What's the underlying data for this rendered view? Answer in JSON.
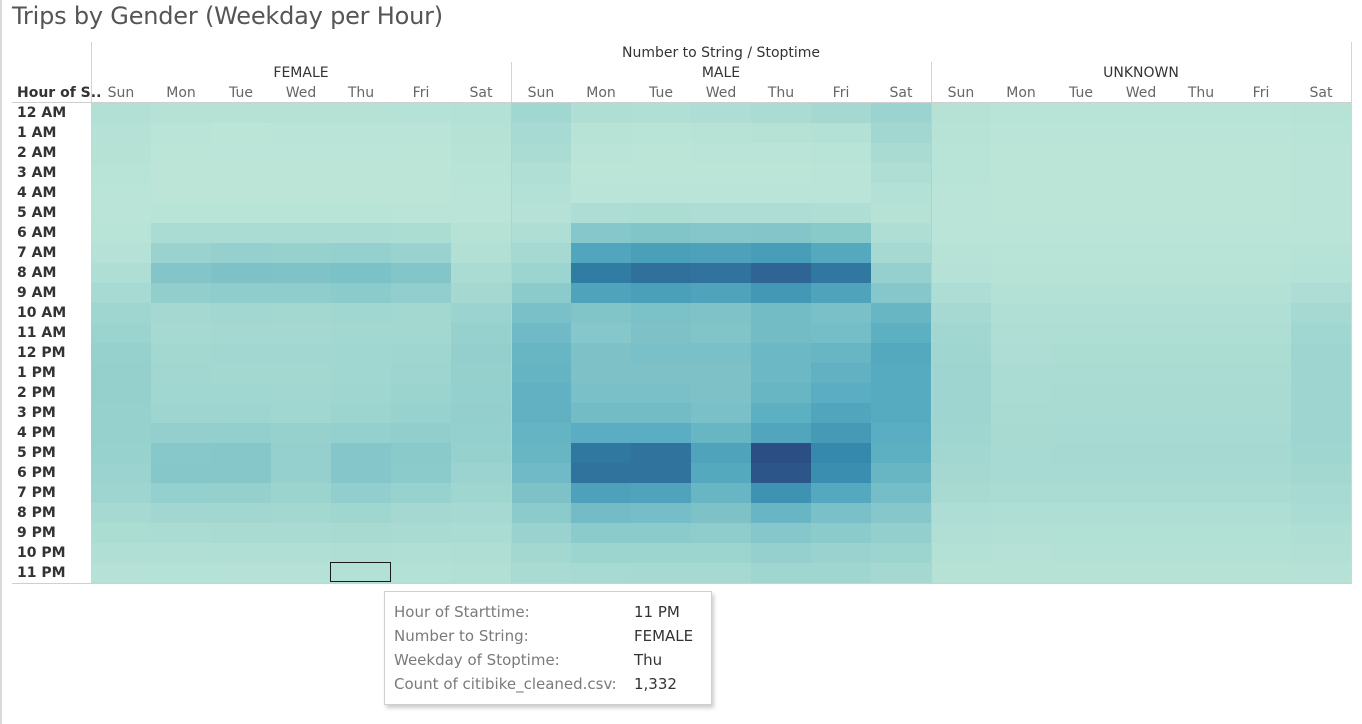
{
  "title": "Trips by Gender (Weekday per Hour)",
  "super_header": "Number to String / Stoptime",
  "row_field_label": "Hour of S..",
  "colors": {
    "low": "#bde6d8",
    "high": "#2b4f85",
    "highlight_border": "#1a1a1a"
  },
  "tooltip": {
    "rows": [
      {
        "key": "Hour of Starttime:",
        "value": "11 PM"
      },
      {
        "key": "Number to String:",
        "value": "FEMALE"
      },
      {
        "key": "Weekday of Stoptime:",
        "value": "Thu"
      },
      {
        "key": "Count of citibike_cleaned.csv:",
        "value": "1,332"
      }
    ]
  },
  "chart_data": {
    "type": "heatmap",
    "title": "Trips by Gender (Weekday per Hour)",
    "column_group_field": "Number to String / Stoptime",
    "row_field": "Hour of S..",
    "groups": [
      "FEMALE",
      "MALE",
      "UNKNOWN"
    ],
    "days": [
      "Sun",
      "Mon",
      "Tue",
      "Wed",
      "Thu",
      "Fri",
      "Sat"
    ],
    "hours": [
      "12 AM",
      "1 AM",
      "2 AM",
      "3 AM",
      "4 AM",
      "5 AM",
      "6 AM",
      "7 AM",
      "8 AM",
      "9 AM",
      "10 AM",
      "11 AM",
      "12 PM",
      "1 PM",
      "2 PM",
      "3 PM",
      "4 PM",
      "5 PM",
      "6 PM",
      "7 PM",
      "8 PM",
      "9 PM",
      "10 PM",
      "11 PM"
    ],
    "measure": "Count of citibike_cleaned.csv",
    "color_range": [
      0,
      30000
    ],
    "highlighted_cell": {
      "group": "FEMALE",
      "day": "Thu",
      "hour": "11 PM",
      "value": 1332
    },
    "values": {
      "FEMALE": [
        [
          1600,
          1100,
          1000,
          1050,
          1050,
          1150,
          1400
        ],
        [
          1300,
          500,
          400,
          450,
          450,
          550,
          1100
        ],
        [
          1100,
          300,
          250,
          250,
          250,
          350,
          900
        ],
        [
          800,
          200,
          150,
          150,
          150,
          200,
          700
        ],
        [
          600,
          200,
          150,
          150,
          150,
          200,
          500
        ],
        [
          500,
          700,
          700,
          700,
          700,
          650,
          500
        ],
        [
          800,
          2700,
          2900,
          2800,
          2900,
          2600,
          1000
        ],
        [
          1300,
          5500,
          6000,
          5900,
          6200,
          5500,
          1600
        ],
        [
          2200,
          8800,
          9500,
          9300,
          9900,
          8700,
          2700
        ],
        [
          3400,
          6700,
          7100,
          7000,
          7500,
          6600,
          3900
        ],
        [
          4500,
          3900,
          4100,
          4000,
          4300,
          4000,
          5300
        ],
        [
          5200,
          3600,
          3800,
          3800,
          4000,
          4000,
          5900
        ],
        [
          5800,
          4000,
          4100,
          4100,
          4300,
          4500,
          6300
        ],
        [
          6100,
          4100,
          4000,
          4000,
          4300,
          4700,
          6100
        ],
        [
          6100,
          4300,
          4300,
          4200,
          4500,
          5200,
          6200
        ],
        [
          5900,
          4800,
          4700,
          4300,
          5000,
          5600,
          6300
        ],
        [
          5800,
          6300,
          6400,
          5900,
          6200,
          6700,
          6200
        ],
        [
          5600,
          8200,
          8300,
          6000,
          8600,
          7800,
          5900
        ],
        [
          5300,
          8400,
          8300,
          6000,
          8600,
          7600,
          5400
        ],
        [
          4600,
          6200,
          6100,
          5200,
          6600,
          5600,
          4500
        ],
        [
          3500,
          4100,
          4100,
          4000,
          4500,
          3900,
          3500
        ],
        [
          2600,
          2900,
          3000,
          3000,
          3200,
          3000,
          2900
        ],
        [
          2000,
          1900,
          2000,
          2000,
          2100,
          2000,
          2200
        ],
        [
          1300,
          1200,
          1300,
          1300,
          1332,
          1400,
          1700
        ]
      ],
      "MALE": [
        [
          4300,
          2200,
          2000,
          2400,
          2800,
          3900,
          5300
        ],
        [
          3400,
          900,
          800,
          900,
          1000,
          1400,
          4100
        ],
        [
          2700,
          500,
          400,
          500,
          500,
          800,
          3100
        ],
        [
          2000,
          400,
          300,
          400,
          400,
          500,
          2300
        ],
        [
          1500,
          600,
          500,
          500,
          500,
          600,
          1500
        ],
        [
          1300,
          2500,
          2600,
          2500,
          2400,
          2200,
          1100
        ],
        [
          2300,
          8500,
          9000,
          8600,
          8800,
          8000,
          2200
        ],
        [
          3600,
          16000,
          17500,
          17000,
          18000,
          15500,
          3700
        ],
        [
          5000,
          24000,
          25500,
          25000,
          27000,
          24500,
          6000
        ],
        [
          7500,
          16500,
          17500,
          16500,
          19000,
          16500,
          8500
        ],
        [
          10000,
          9000,
          9800,
          9300,
          11000,
          10000,
          12500
        ],
        [
          11500,
          8500,
          9500,
          9000,
          11000,
          10500,
          14000
        ],
        [
          12500,
          9500,
          10000,
          10000,
          12000,
          12500,
          15500
        ],
        [
          13000,
          9500,
          9500,
          9500,
          12000,
          13500,
          15000
        ],
        [
          13500,
          10000,
          10000,
          9500,
          12500,
          14500,
          15000
        ],
        [
          13500,
          11000,
          11000,
          10000,
          14000,
          16000,
          15000
        ],
        [
          13000,
          14500,
          14500,
          12500,
          16000,
          18500,
          14500
        ],
        [
          12500,
          24500,
          25000,
          16500,
          30000,
          22000,
          14000
        ],
        [
          11500,
          25000,
          25000,
          15500,
          29000,
          21000,
          12500
        ],
        [
          9500,
          17000,
          16500,
          12500,
          20000,
          15500,
          10500
        ],
        [
          7500,
          11000,
          10500,
          9500,
          12500,
          10000,
          8500
        ],
        [
          5500,
          7500,
          7500,
          7000,
          8500,
          7500,
          6500
        ],
        [
          4000,
          5000,
          5000,
          5000,
          6000,
          5500,
          5000
        ],
        [
          3000,
          3300,
          3500,
          3500,
          4500,
          4500,
          3900
        ]
      ],
      "UNKNOWN": [
        [
          1100,
          800,
          800,
          800,
          800,
          800,
          900
        ],
        [
          900,
          500,
          500,
          500,
          500,
          500,
          700
        ],
        [
          800,
          400,
          400,
          400,
          400,
          400,
          600
        ],
        [
          700,
          300,
          300,
          300,
          300,
          300,
          600
        ],
        [
          600,
          300,
          300,
          300,
          300,
          300,
          500
        ],
        [
          500,
          400,
          400,
          400,
          400,
          400,
          500
        ],
        [
          600,
          500,
          500,
          500,
          500,
          500,
          600
        ],
        [
          900,
          700,
          700,
          700,
          700,
          700,
          900
        ],
        [
          1300,
          900,
          900,
          900,
          900,
          900,
          1200
        ],
        [
          2400,
          1400,
          1400,
          1400,
          1400,
          1400,
          2400
        ],
        [
          3500,
          2000,
          2000,
          2000,
          2000,
          2000,
          3500
        ],
        [
          4200,
          2300,
          2300,
          2300,
          2300,
          2300,
          4300
        ],
        [
          4500,
          2500,
          2600,
          2600,
          2600,
          2600,
          4700
        ],
        [
          4600,
          2700,
          2800,
          2800,
          2800,
          2800,
          4700
        ],
        [
          4700,
          2900,
          3000,
          3000,
          3000,
          3000,
          4800
        ],
        [
          4700,
          3000,
          3100,
          3100,
          3100,
          3100,
          4800
        ],
        [
          4500,
          3200,
          3300,
          3300,
          3300,
          3300,
          4700
        ],
        [
          4200,
          3400,
          3500,
          3500,
          3500,
          3500,
          4400
        ],
        [
          3800,
          3300,
          3400,
          3400,
          3400,
          3400,
          4000
        ],
        [
          3200,
          2800,
          2900,
          2900,
          2900,
          2900,
          3400
        ],
        [
          2500,
          2200,
          2300,
          2300,
          2300,
          2300,
          2700
        ],
        [
          1900,
          1700,
          1800,
          1800,
          1800,
          1800,
          2100
        ],
        [
          1500,
          1300,
          1400,
          1400,
          1400,
          1400,
          1700
        ],
        [
          1100,
          1000,
          1000,
          1000,
          1000,
          1000,
          1300
        ]
      ]
    }
  }
}
